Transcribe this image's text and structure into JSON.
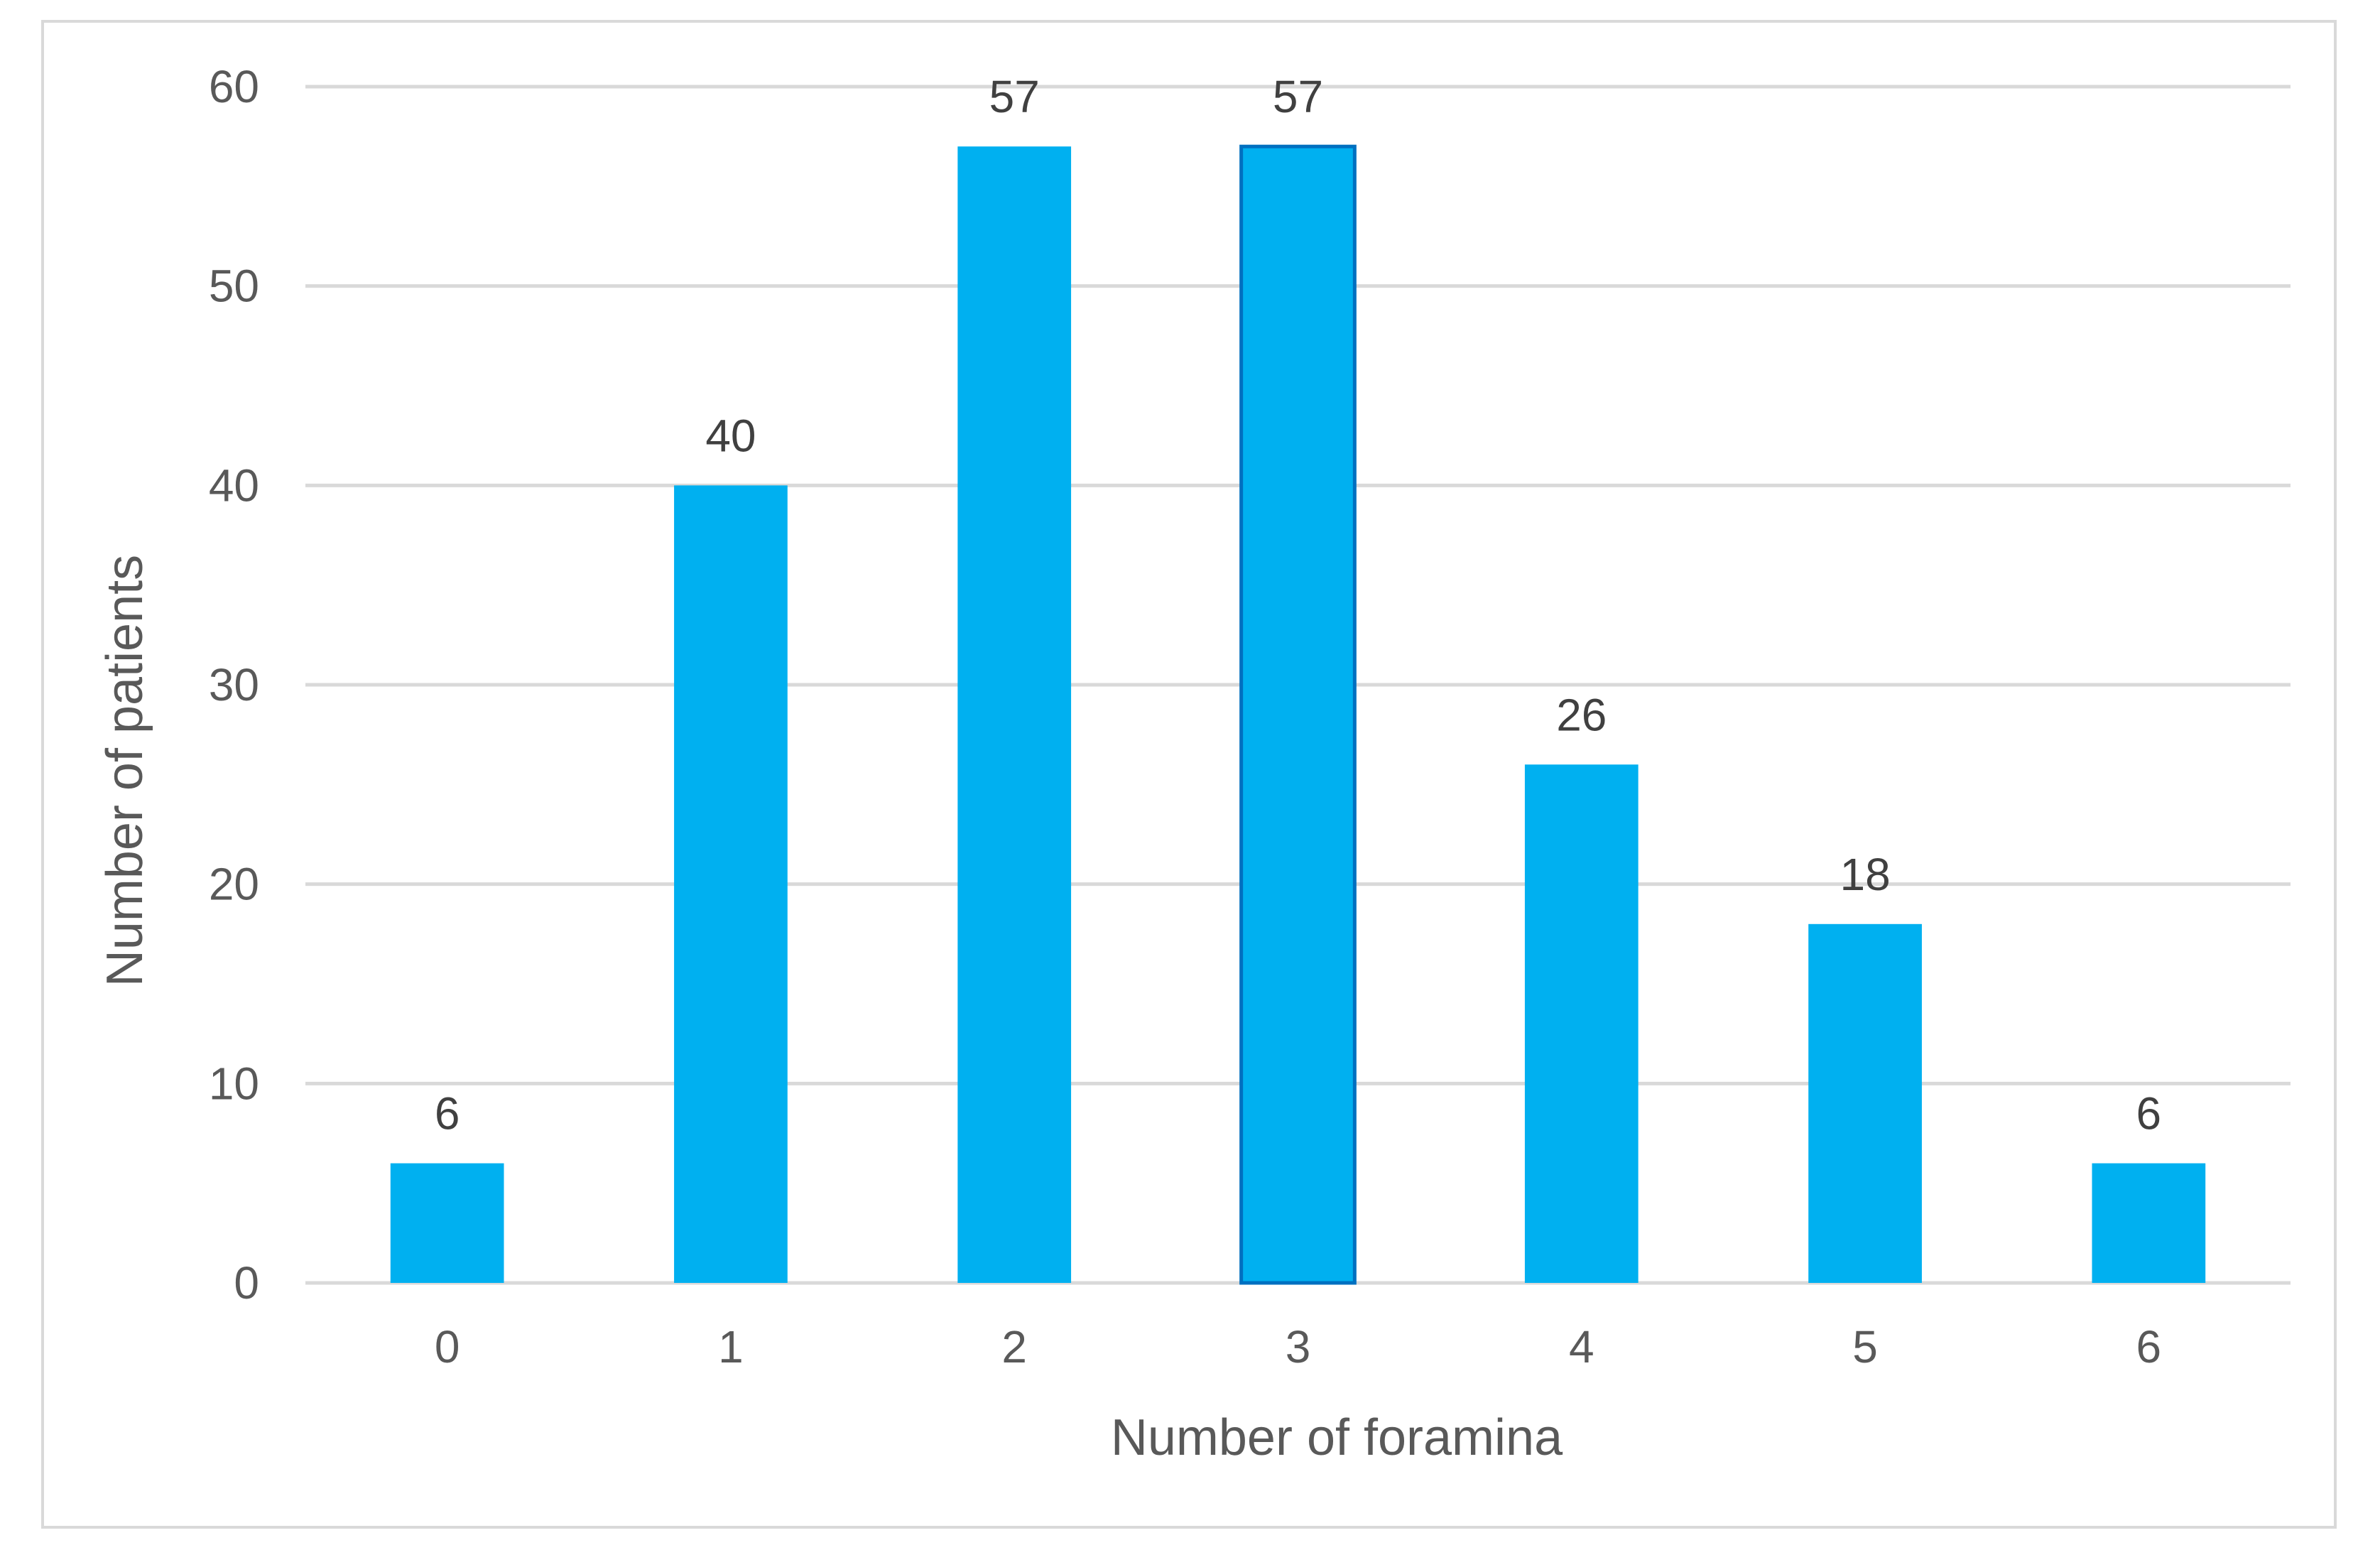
{
  "chart_data": {
    "type": "bar",
    "categories": [
      "0",
      "1",
      "2",
      "3",
      "4",
      "5",
      "6"
    ],
    "values": [
      6,
      40,
      57,
      57,
      26,
      18,
      6
    ],
    "title": "",
    "xlabel": "Number of foramina",
    "ylabel": "Number of patients",
    "ylim": [
      0,
      60
    ],
    "yticks": [
      0,
      10,
      20,
      30,
      40,
      50,
      60
    ],
    "grid": true,
    "data_labels": true,
    "colors": {
      "bar": "#00b0f0",
      "highlight_edge": "#0070c0",
      "grid": "#d9d9d9"
    }
  }
}
